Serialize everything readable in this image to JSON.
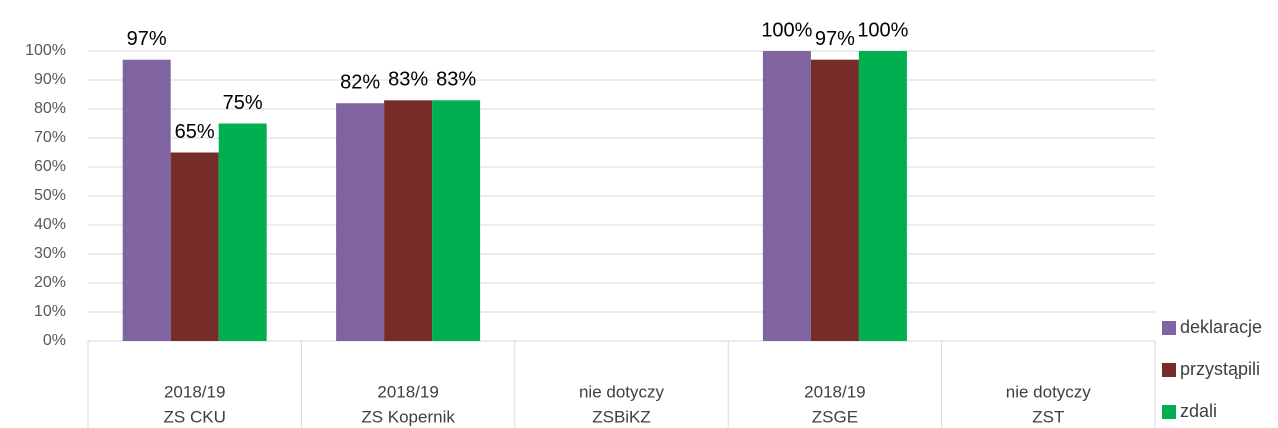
{
  "chart_data": {
    "type": "bar",
    "categories": [
      "ZS CKU",
      "ZS Kopernik",
      "ZSBiKZ",
      "ZSGE",
      "ZST"
    ],
    "sublabels": [
      "2018/19",
      "2018/19",
      "nie dotyczy",
      "2018/19",
      "nie dotyczy"
    ],
    "series": [
      {
        "name": "deklaracje",
        "color": "#8064a2",
        "values": [
          97,
          82,
          null,
          100,
          null
        ],
        "value_labels": [
          "97%",
          "82%",
          null,
          "100%",
          null
        ]
      },
      {
        "name": "przystąpili",
        "color": "#772c2a",
        "values": [
          65,
          83,
          null,
          97,
          null
        ],
        "value_labels": [
          "65%",
          "83%",
          null,
          "97%",
          null
        ]
      },
      {
        "name": "zdali",
        "color": "#00b050",
        "values": [
          75,
          83,
          null,
          100,
          null
        ],
        "value_labels": [
          "75%",
          "83%",
          null,
          "100%",
          null
        ]
      }
    ],
    "ylim": [
      0,
      100
    ],
    "yticks": [
      {
        "value": 0,
        "label": "0%"
      },
      {
        "value": 10,
        "label": "10%"
      },
      {
        "value": 20,
        "label": "20%"
      },
      {
        "value": 30,
        "label": "30%"
      },
      {
        "value": 40,
        "label": "40%"
      },
      {
        "value": 50,
        "label": "50%"
      },
      {
        "value": 60,
        "label": "60%"
      },
      {
        "value": 70,
        "label": "70%"
      },
      {
        "value": 80,
        "label": "80%"
      },
      {
        "value": 90,
        "label": "90%"
      },
      {
        "value": 100,
        "label": "100%"
      }
    ],
    "grid": true,
    "legend": "right"
  }
}
